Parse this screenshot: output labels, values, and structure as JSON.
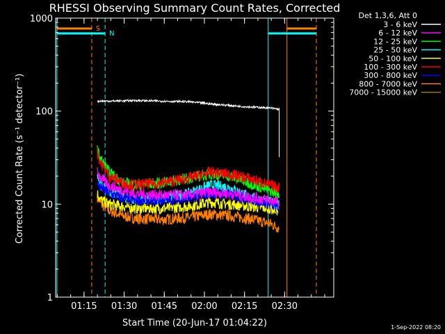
{
  "chart_data": {
    "type": "line",
    "title": "RHESSI Observing Summary Count Rates, Corrected",
    "xlabel": "Start Time (20-Jun-17 01:04:22)",
    "ylabel": "Corrected Count Rate (s⁻¹ detector⁻¹)",
    "yscale": "log",
    "ylim": [
      1,
      1000
    ],
    "xlim_minutes": [
      0,
      104
    ],
    "x_ticks": [
      "01:15",
      "01:30",
      "01:45",
      "02:00",
      "02:15",
      "02:30"
    ],
    "x_tick_minutes": [
      10.63,
      25.63,
      40.63,
      55.63,
      70.63,
      85.63
    ],
    "y_ticks": [
      "1",
      "10",
      "100",
      "1000"
    ],
    "y_tick_values": [
      1,
      10,
      100,
      1000
    ],
    "legend_title": "Det 1,3,6, Att 0",
    "legend_position": "top-right",
    "footer_date": "1-Sep-2022 08:20",
    "flags": [
      {
        "label": "S",
        "color": "#ff8000",
        "x_minutes": [
          0.5,
          13.5
        ],
        "x_minutes_right": [
          86.5,
          97.5
        ]
      },
      {
        "label": "N",
        "color": "#00ffff",
        "x_minutes": [
          0.5,
          18.5
        ],
        "x_minutes_right": [
          79.5,
          97.5
        ]
      }
    ],
    "vlines": [
      {
        "minute": 13.5,
        "color": "#ff8000",
        "style": "dashed"
      },
      {
        "minute": 18.5,
        "color": "#00ffff",
        "style": "dashed"
      },
      {
        "minute": 79.5,
        "color": "#00ffff",
        "style": "solid"
      },
      {
        "minute": 86.5,
        "color": "#ff8000",
        "style": "solid"
      },
      {
        "minute": 97.5,
        "color": "#ff8000",
        "style": "dashed"
      }
    ],
    "series": [
      {
        "name": "3 - 6 keV",
        "color": "#ffffff",
        "x": [
          15.6,
          20,
          30,
          40,
          50,
          60,
          70,
          80,
          83.6
        ],
        "y": [
          128,
          128,
          130,
          128,
          126,
          118,
          112,
          108,
          105
        ]
      },
      {
        "name": "6 - 12 keV",
        "color": "#ff00ff",
        "x": [
          15.6,
          17,
          20,
          25,
          30,
          40,
          50,
          58,
          65,
          72,
          80,
          83.6
        ],
        "y": [
          22,
          19,
          16,
          14,
          13,
          12.5,
          12.5,
          13.5,
          13,
          12,
          11,
          10.5
        ]
      },
      {
        "name": "12 - 25 keV",
        "color": "#00ff00",
        "x": [
          15.6,
          17,
          20,
          25,
          30,
          40,
          50,
          58,
          65,
          72,
          80,
          83.6
        ],
        "y": [
          38,
          30,
          22,
          17,
          16,
          17,
          19,
          21,
          20,
          17,
          14,
          13
        ]
      },
      {
        "name": "25 - 50 keV",
        "color": "#00ffff",
        "x": [
          15.6,
          17,
          20,
          25,
          30,
          40,
          50,
          58,
          65,
          72,
          80,
          83.6
        ],
        "y": [
          20,
          16,
          14,
          12,
          11,
          11.5,
          13,
          16,
          15,
          12,
          10.5,
          10
        ]
      },
      {
        "name": "50 - 100 keV",
        "color": "#ffff00",
        "x": [
          15.6,
          17,
          20,
          25,
          30,
          40,
          50,
          58,
          65,
          72,
          80,
          83.6
        ],
        "y": [
          13,
          11,
          10,
          9.5,
          9,
          9,
          9.5,
          10.5,
          10,
          9.5,
          9,
          8.5
        ]
      },
      {
        "name": "100 - 300 keV",
        "color": "#ff0000",
        "x": [
          15.6,
          17,
          20,
          25,
          30,
          40,
          50,
          58,
          65,
          72,
          80,
          83.6
        ],
        "y": [
          35,
          27,
          20,
          17,
          16,
          17,
          19,
          22,
          21,
          19,
          16,
          15
        ]
      },
      {
        "name": "300 - 800 keV",
        "color": "#0000ff",
        "x": [
          15.6,
          17,
          20,
          25,
          30,
          40,
          50,
          58,
          65,
          72,
          80,
          83.6
        ],
        "y": [
          17,
          15,
          13,
          11.5,
          11,
          11,
          11.5,
          13,
          12.5,
          11.5,
          10,
          9
        ]
      },
      {
        "name": "800 - 7000 keV",
        "color": "#ff8000",
        "x": [
          15.6,
          17,
          20,
          25,
          30,
          40,
          50,
          58,
          65,
          72,
          80,
          83.6
        ],
        "y": [
          12,
          10,
          8.5,
          7.5,
          7,
          6.8,
          7.2,
          7.8,
          7.5,
          7,
          6.2,
          5.5
        ]
      },
      {
        "name": "7000 - 15000 keV",
        "color": "#a0782d",
        "x": [
          15.6,
          83.6
        ],
        "y": [
          null,
          null
        ]
      }
    ]
  }
}
